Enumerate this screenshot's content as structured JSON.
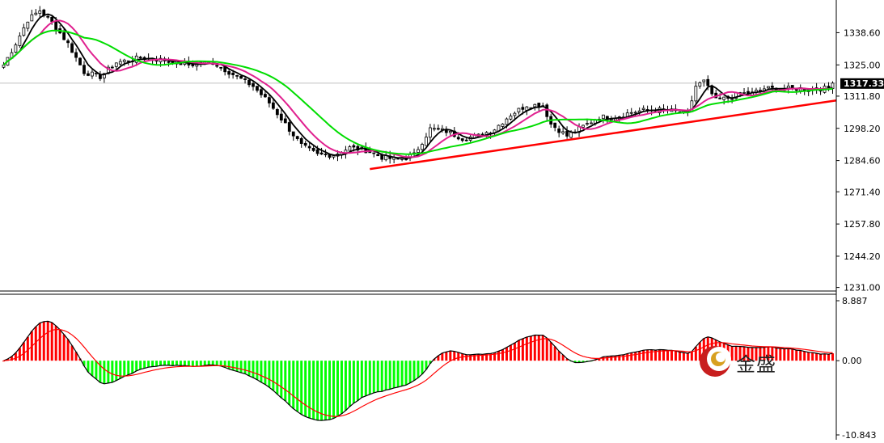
{
  "chart_data": [
    {
      "type": "candlestick",
      "title": "",
      "yaxis": {
        "range": [
          1229.5,
          1352.4
        ],
        "ticks": [
          1338.6,
          1325.0,
          1311.8,
          1298.2,
          1284.6,
          1271.4,
          1257.8,
          1244.2,
          1231.0
        ],
        "tick_labels": [
          "1338.60",
          "1325.00",
          "1311.80",
          "1298.20",
          "1284.60",
          "1271.40",
          "1257.80",
          "1244.20",
          "1231.00"
        ]
      },
      "current_price": 1317.3,
      "current_price_label": "1317.33",
      "close_series_anchors": [
        [
          0,
          1325
        ],
        [
          3,
          1334
        ],
        [
          6,
          1344
        ],
        [
          9,
          1348
        ],
        [
          12,
          1343
        ],
        [
          16,
          1334
        ],
        [
          20,
          1322
        ],
        [
          24,
          1320
        ],
        [
          28,
          1326
        ],
        [
          34,
          1328
        ],
        [
          40,
          1327
        ],
        [
          46,
          1325
        ],
        [
          52,
          1326
        ],
        [
          58,
          1320
        ],
        [
          62,
          1316
        ],
        [
          66,
          1309
        ],
        [
          70,
          1300
        ],
        [
          74,
          1291
        ],
        [
          78,
          1287
        ],
        [
          82,
          1287
        ],
        [
          86,
          1290
        ],
        [
          90,
          1289
        ],
        [
          94,
          1286
        ],
        [
          98,
          1285
        ],
        [
          102,
          1287
        ],
        [
          106,
          1298
        ],
        [
          110,
          1297
        ],
        [
          114,
          1294
        ],
        [
          118,
          1295
        ],
        [
          122,
          1298
        ],
        [
          126,
          1304
        ],
        [
          130,
          1308
        ],
        [
          134,
          1308
        ],
        [
          136,
          1300
        ],
        [
          140,
          1295
        ],
        [
          144,
          1299
        ],
        [
          148,
          1303
        ],
        [
          152,
          1303
        ],
        [
          156,
          1305
        ],
        [
          160,
          1306
        ],
        [
          164,
          1306
        ],
        [
          168,
          1305
        ],
        [
          170,
          1304
        ],
        [
          172,
          1316
        ],
        [
          174,
          1318
        ],
        [
          177,
          1310
        ],
        [
          180,
          1311
        ],
        [
          183,
          1313
        ],
        [
          186,
          1313
        ],
        [
          189,
          1315
        ]
      ],
      "moving_averages": [
        {
          "color": "#000000",
          "period": 5,
          "values": []
        },
        {
          "color": "#e0208f",
          "period": 10,
          "values": []
        },
        {
          "color": "#00dd00",
          "period": 21,
          "values": []
        }
      ],
      "trendline": {
        "color": "#ff0000",
        "points": [
          [
            91,
            1281
          ],
          [
            207,
            1310
          ]
        ]
      },
      "bar_count": 207
    },
    {
      "type": "macd",
      "yaxis": {
        "range": [
          -10.843,
          8.887
        ],
        "ticks": [
          8.887,
          0.0,
          -10.843
        ],
        "tick_labels": [
          "8.887",
          "0.00",
          "-10.843"
        ]
      },
      "series": [
        {
          "color": "#000000",
          "values": []
        },
        {
          "color": "#ff0000",
          "values": []
        }
      ],
      "histogram": {
        "positive_color": "#ff0000",
        "negative_color": "#00ff00",
        "values": []
      }
    }
  ],
  "watermark": {
    "text": "金盛",
    "logo_icon": "jinsheng-logo-icon"
  }
}
